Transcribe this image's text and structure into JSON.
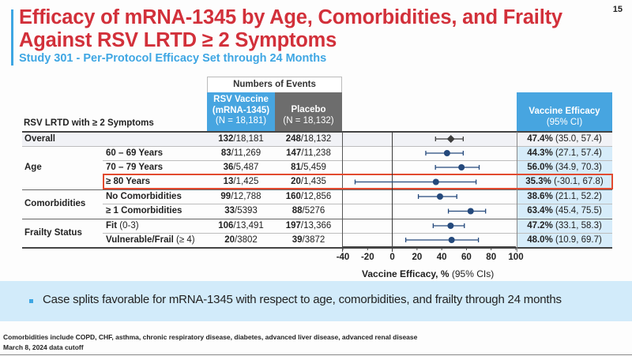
{
  "page_number": "15",
  "title_line1": "Efficacy of mRNA-1345 by Age, Comorbidities, and Frailty",
  "title_line2": "Against RSV LRTD ≥ 2 Symptoms",
  "subtitle": "Study 301 - Per-Protocol Efficacy Set through 24 Months",
  "table": {
    "row_header": "RSV LRTD with ≥ 2 Symptoms",
    "events_header": "Numbers of Events",
    "vaccine_header": {
      "line1": "RSV Vaccine",
      "line2": "(mRNA-1345)",
      "line3": "(N = 18,181)"
    },
    "placebo_header": {
      "line1": "Placebo",
      "line2": "(N = 18,132)"
    },
    "ve_header": {
      "line1": "Vaccine Efficacy",
      "line2": "(95% CI)"
    },
    "categories": {
      "overall": "Overall",
      "age": "Age",
      "comorbidities": "Comorbidities",
      "frailty": "Frailty Status"
    },
    "rows": [
      {
        "subgroup": "",
        "subgroup_note": "",
        "vac_events": "132",
        "vac_n": "/18,181",
        "plc_events": "248",
        "plc_n": "/18,132",
        "ve": "47.4%",
        "ci": " (35.0, 57.4)"
      },
      {
        "subgroup": "60 – 69 Years",
        "subgroup_note": "",
        "vac_events": "83",
        "vac_n": "/11,269",
        "plc_events": "147",
        "plc_n": "/11,238",
        "ve": "44.3%",
        "ci": " (27.1, 57.4)"
      },
      {
        "subgroup": "70 – 79 Years",
        "subgroup_note": "",
        "vac_events": "36",
        "vac_n": "/5,487",
        "plc_events": "81",
        "plc_n": "/5,459",
        "ve": "56.0%",
        "ci": " (34.9, 70.3)"
      },
      {
        "subgroup": "≥ 80 Years",
        "subgroup_note": "",
        "vac_events": "13",
        "vac_n": "/1,425",
        "plc_events": "20",
        "plc_n": "/1,435",
        "ve": "35.3%",
        "ci": " (-30.1, 67.8)"
      },
      {
        "subgroup": "No Comorbidities",
        "subgroup_note": "",
        "vac_events": "99",
        "vac_n": "/12,788",
        "plc_events": "160",
        "plc_n": "/12,856",
        "ve": "38.6%",
        "ci": " (21.1, 52.2)"
      },
      {
        "subgroup": "≥ 1 Comorbidities",
        "subgroup_note": "",
        "vac_events": "33",
        "vac_n": "/5393",
        "plc_events": "88",
        "plc_n": "/5276",
        "ve": "63.4%",
        "ci": " (45.4, 75.5)"
      },
      {
        "subgroup": "Fit",
        "subgroup_note": " (0-3)",
        "vac_events": "106",
        "vac_n": "/13,491",
        "plc_events": "197",
        "plc_n": "/13,366",
        "ve": "47.2%",
        "ci": " (33.1, 58.3)"
      },
      {
        "subgroup": "Vulnerable/Frail",
        "subgroup_note": " (≥ 4)",
        "vac_events": "20",
        "vac_n": "/3802",
        "plc_events": "39",
        "plc_n": "/3872",
        "ve": "48.0%",
        "ci": " (10.9, 69.7)"
      }
    ]
  },
  "chart_data": {
    "type": "scatter",
    "subtype": "forest-plot",
    "xlabel_bold": "Vaccine Efficacy, %",
    "xlabel_rest": " (95% CIs)",
    "xlim": [
      -40,
      100
    ],
    "xticks": [
      "-40",
      "-20",
      "0",
      "20",
      "40",
      "60",
      "80",
      "100"
    ],
    "reference_line": 0,
    "colors": {
      "overall": "#3d3d3d",
      "subgroup": "#24497c"
    },
    "points": [
      {
        "label": "Overall",
        "estimate": 47.4,
        "lower": 35.0,
        "upper": 57.4,
        "marker": "diamond"
      },
      {
        "label": "60 – 69 Years",
        "estimate": 44.3,
        "lower": 27.1,
        "upper": 57.4,
        "marker": "circle"
      },
      {
        "label": "70 – 79 Years",
        "estimate": 56.0,
        "lower": 34.9,
        "upper": 70.3,
        "marker": "circle"
      },
      {
        "label": "≥ 80 Years",
        "estimate": 35.3,
        "lower": -30.1,
        "upper": 67.8,
        "marker": "circle"
      },
      {
        "label": "No Comorbidities",
        "estimate": 38.6,
        "lower": 21.1,
        "upper": 52.2,
        "marker": "circle"
      },
      {
        "label": "≥ 1 Comorbidities",
        "estimate": 63.4,
        "lower": 45.4,
        "upper": 75.5,
        "marker": "circle"
      },
      {
        "label": "Fit (0-3)",
        "estimate": 47.2,
        "lower": 33.1,
        "upper": 58.3,
        "marker": "circle"
      },
      {
        "label": "Vulnerable/Frail (≥ 4)",
        "estimate": 48.0,
        "lower": 10.9,
        "upper": 69.7,
        "marker": "circle"
      }
    ]
  },
  "banner_text": "Case splits favorable for mRNA-1345 with respect to age, comorbidities, and frailty through 24 months",
  "footnotes": [
    "Comorbidities include COPD, CHF, asthma, chronic respiratory disease, diabetes, advanced liver disease, advanced renal disease",
    "March 8, 2024 data cutoff"
  ],
  "highlight_color": "#e24a2f"
}
